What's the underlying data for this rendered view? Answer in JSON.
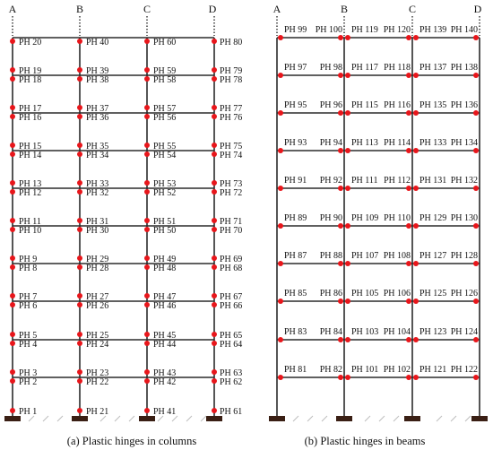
{
  "colors": {
    "frame": "#2b2b2b",
    "hinge": "#e8161b",
    "support": "#3a1f14",
    "hatch": "#bdbdbd"
  },
  "panels": [
    {
      "id": "a",
      "caption": "(a) Plastic hinges in columns",
      "columns": [
        "A",
        "B",
        "C",
        "D"
      ],
      "hinges_left_col": [
        "PH 20",
        "PH 19",
        "PH 18",
        "PH 17",
        "PH 16",
        "PH 15",
        "PH 14",
        "PH 13",
        "PH 12",
        "PH 11",
        "PH 10",
        "PH 9",
        "PH 8",
        "PH 7",
        "PH 6",
        "PH 5",
        "PH 4",
        "PH 3",
        "PH 2",
        "PH 1"
      ],
      "hinges_col_b": [
        "PH 40",
        "PH 39",
        "PH 38",
        "PH 37",
        "PH 36",
        "PH 35",
        "PH 34",
        "PH 33",
        "PH 32",
        "PH 31",
        "PH 30",
        "PH 29",
        "PH 28",
        "PH 27",
        "PH 26",
        "PH 25",
        "PH 24",
        "PH 23",
        "PH 22",
        "PH 21"
      ],
      "hinges_col_c": [
        "PH 60",
        "PH 59",
        "PH 58",
        "PH 57",
        "PH 56",
        "PH 55",
        "PH 54",
        "PH 53",
        "PH 52",
        "PH 51",
        "PH 50",
        "PH 49",
        "PH 48",
        "PH 47",
        "PH 46",
        "PH 45",
        "PH 44",
        "PH 43",
        "PH 42",
        "PH 41"
      ],
      "hinges_col_d": [
        "PH 80",
        "PH 79",
        "PH 78",
        "PH 77",
        "PH 76",
        "PH 75",
        "PH 74",
        "PH 73",
        "PH 72",
        "PH 71",
        "PH 70",
        "PH 69",
        "PH 68",
        "PH 67",
        "PH 66",
        "PH 65",
        "PH 64",
        "PH 63",
        "PH 62",
        "PH 61"
      ]
    },
    {
      "id": "b",
      "caption": "(b) Plastic hinges in beams",
      "columns": [
        "A",
        "B",
        "C",
        "D"
      ],
      "bay1": [
        [
          "PH 99",
          "PH 100"
        ],
        [
          "PH 97",
          "PH 98"
        ],
        [
          "PH 95",
          "PH 96"
        ],
        [
          "PH 93",
          "PH 94"
        ],
        [
          "PH 91",
          "PH 92"
        ],
        [
          "PH 89",
          "PH 90"
        ],
        [
          "PH 87",
          "PH 88"
        ],
        [
          "PH 85",
          "PH 86"
        ],
        [
          "PH 83",
          "PH 84"
        ],
        [
          "PH 81",
          "PH 82"
        ]
      ],
      "bay2": [
        [
          "PH 119",
          "PH 120"
        ],
        [
          "PH 117",
          "PH 118"
        ],
        [
          "PH 115",
          "PH 116"
        ],
        [
          "PH 113",
          "PH 114"
        ],
        [
          "PH 111",
          "PH 112"
        ],
        [
          "PH 109",
          "PH 110"
        ],
        [
          "PH 107",
          "PH 108"
        ],
        [
          "PH 105",
          "PH 106"
        ],
        [
          "PH 103",
          "PH 104"
        ],
        [
          "PH 101",
          "PH 102"
        ]
      ],
      "bay3": [
        [
          "PH 139",
          "PH 140"
        ],
        [
          "PH 137",
          "PH 138"
        ],
        [
          "PH 135",
          "PH 136"
        ],
        [
          "PH 133",
          "PH 134"
        ],
        [
          "PH 131",
          "PH 132"
        ],
        [
          "PH 129",
          "PH 130"
        ],
        [
          "PH 127",
          "PH 128"
        ],
        [
          "PH 125",
          "PH 126"
        ],
        [
          "PH 123",
          "PH 124"
        ],
        [
          "PH 121",
          "PH 122"
        ]
      ]
    }
  ]
}
